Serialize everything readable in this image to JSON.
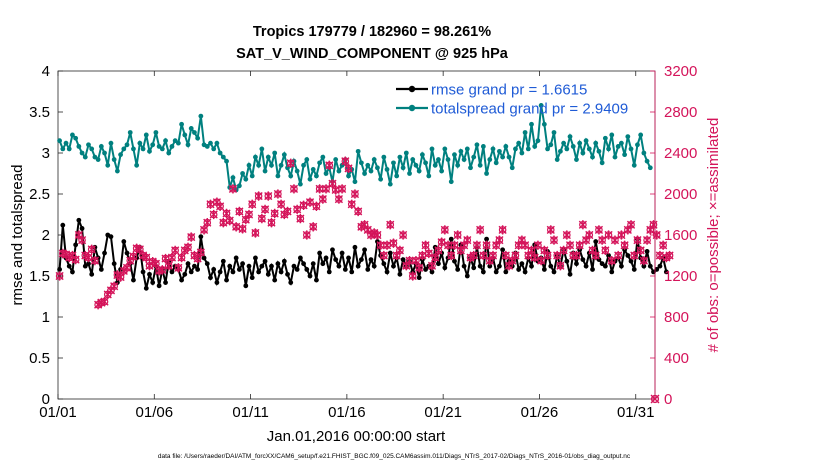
{
  "chart_data": {
    "type": "line",
    "title": "Tropics 179779 / 182960 = 98.261%",
    "subtitle": "SAT_V_WIND_COMPONENT @ 925 hPa",
    "xlabel": "Jan.01,2016 00:00:00 start",
    "ylabel_left": "rmse and totalspread",
    "ylabel_right": "# of obs: o=possible; ×=assimilated",
    "footer": "data file: /Users/raeder/DAI/ATM_forcXX/CAM6_setup/f.e21.FHIST_BGC.f09_025.CAM6assim.011/Diags_NTrS_2017-02/Diags_NTrS_2016-01/obs_diag_output.nc",
    "x_ticks": [
      1,
      6,
      11,
      16,
      21,
      26,
      31
    ],
    "x_tick_labels": [
      "01/01",
      "01/06",
      "01/11",
      "01/16",
      "01/21",
      "01/26",
      "01/31"
    ],
    "xlim": [
      1,
      32
    ],
    "ylim_left": [
      0,
      4
    ],
    "y_left_ticks": [
      0,
      0.5,
      1,
      1.5,
      2,
      2.5,
      3,
      3.5,
      4
    ],
    "y_left_tick_labels": [
      "0",
      "0.5",
      "1",
      "1.5",
      "2",
      "2.5",
      "3",
      "3.5",
      "4"
    ],
    "ylim_right": [
      0,
      3200
    ],
    "y_right_ticks": [
      0,
      400,
      800,
      1200,
      1600,
      2000,
      2400,
      2800,
      3200
    ],
    "y_right_tick_labels": [
      "0",
      "400",
      "800",
      "1200",
      "1600",
      "2000",
      "2400",
      "2800",
      "3200"
    ],
    "legend_position": "top-right",
    "series": [
      {
        "name": "rmse grand pr = 1.6615",
        "color": "#000000",
        "marker": "dot",
        "axis": "left",
        "values": [
          1.58,
          2.12,
          1.72,
          1.62,
          1.55,
          1.88,
          2.18,
          2.08,
          1.62,
          1.65,
          1.52,
          1.85,
          1.72,
          1.58,
          1.78,
          2.0,
          1.98,
          1.65,
          1.42,
          1.58,
          1.92,
          1.78,
          1.65,
          1.45,
          1.72,
          1.85,
          1.55,
          1.35,
          1.52,
          1.42,
          1.62,
          1.38,
          1.58,
          1.42,
          1.68,
          1.55,
          1.62,
          1.58,
          1.45,
          1.52,
          1.65,
          1.55,
          1.62,
          1.58,
          1.98,
          1.72,
          1.65,
          1.48,
          1.58,
          1.42,
          1.55,
          1.68,
          1.45,
          1.62,
          1.55,
          1.72,
          1.58,
          1.65,
          1.38,
          1.62,
          1.48,
          1.72,
          1.55,
          1.62,
          1.68,
          1.52,
          1.62,
          1.45,
          1.65,
          1.55,
          1.68,
          1.52,
          1.42,
          1.62,
          1.58,
          1.72,
          1.65,
          1.58,
          1.5,
          1.65,
          1.45,
          1.78,
          1.65,
          1.72,
          1.55,
          1.82,
          1.7,
          1.62,
          1.78,
          1.58,
          1.72,
          1.55,
          1.85,
          1.62,
          1.7,
          1.82,
          1.58,
          1.7,
          1.62,
          1.92,
          1.75,
          1.65,
          1.55,
          1.78,
          1.62,
          1.72,
          1.52,
          1.7,
          1.62,
          1.68,
          1.55,
          1.65,
          1.48,
          1.7,
          1.58,
          1.62,
          1.55,
          1.85,
          1.65,
          1.78,
          1.6,
          1.72,
          1.95,
          1.68,
          1.58,
          1.88,
          1.62,
          1.5,
          1.72,
          1.6,
          1.85,
          1.62,
          1.55,
          1.95,
          1.62,
          1.72,
          1.55,
          1.62,
          1.82,
          1.55,
          1.68,
          1.62,
          1.78,
          1.58,
          1.65,
          1.55,
          1.72,
          1.62,
          1.88,
          1.68,
          1.72,
          1.58,
          1.8,
          1.62,
          1.55,
          1.75,
          1.62,
          1.82,
          1.68,
          1.52,
          1.78,
          1.65,
          1.82,
          1.7,
          1.62,
          1.78,
          1.58,
          1.92,
          1.7,
          1.65,
          1.62,
          1.75,
          1.55,
          1.68,
          1.72,
          1.62,
          1.82,
          1.75,
          1.68,
          1.58,
          1.95,
          1.72,
          1.62,
          1.8,
          1.62,
          1.55,
          1.58,
          1.62,
          1.72,
          1.55
        ]
      },
      {
        "name": "totalspread grand pr = 2.9409",
        "color": "#00807f",
        "marker": "dot",
        "axis": "left",
        "values": [
          3.15,
          3.05,
          3.12,
          3.05,
          3.22,
          3.18,
          3.08,
          3.0,
          2.95,
          3.1,
          3.05,
          2.95,
          2.92,
          3.08,
          3.0,
          2.85,
          3.12,
          2.92,
          2.78,
          2.98,
          3.05,
          3.1,
          3.25,
          3.05,
          2.85,
          3.12,
          3.05,
          3.22,
          3.02,
          3.1,
          3.25,
          3.08,
          3.05,
          3.15,
          3.0,
          3.08,
          3.15,
          3.12,
          3.35,
          3.22,
          3.1,
          3.3,
          3.25,
          3.18,
          3.45,
          3.1,
          3.08,
          3.12,
          3.05,
          3.12,
          3.0,
          2.95,
          2.9,
          2.58,
          2.7,
          2.55,
          2.6,
          2.75,
          2.68,
          2.85,
          2.72,
          2.95,
          2.85,
          3.05,
          2.78,
          2.95,
          2.85,
          3.0,
          2.72,
          2.85,
          2.98,
          2.82,
          2.72,
          2.9,
          2.78,
          2.62,
          2.85,
          2.92,
          2.68,
          2.8,
          2.72,
          2.88,
          2.95,
          2.75,
          2.82,
          2.65,
          2.92,
          2.78,
          2.85,
          2.92,
          2.72,
          2.8,
          2.65,
          3.02,
          2.88,
          2.75,
          2.85,
          2.78,
          2.92,
          2.82,
          2.68,
          2.95,
          2.8,
          2.62,
          2.88,
          2.72,
          2.95,
          2.82,
          3.0,
          2.75,
          2.92,
          2.85,
          2.78,
          2.98,
          2.88,
          2.72,
          3.05,
          2.85,
          2.92,
          2.78,
          3.05,
          2.92,
          2.65,
          2.98,
          2.85,
          3.02,
          2.92,
          3.05,
          2.82,
          2.95,
          3.1,
          2.85,
          3.08,
          2.75,
          2.92,
          3.05,
          2.88,
          3.02,
          2.95,
          3.08,
          2.95,
          2.82,
          3.05,
          3.12,
          3.0,
          3.25,
          3.05,
          3.35,
          3.08,
          3.15,
          3.58,
          3.35,
          3.05,
          3.1,
          3.25,
          2.92,
          3.02,
          3.12,
          3.05,
          3.2,
          3.08,
          2.92,
          3.12,
          3.0,
          3.15,
          3.05,
          2.95,
          3.12,
          3.02,
          2.88,
          3.18,
          3.05,
          3.22,
          2.95,
          3.08,
          3.12,
          2.98,
          3.2,
          3.05,
          2.85,
          3.1,
          3.22,
          3.0,
          2.9,
          2.82
        ]
      },
      {
        "name": "possible",
        "color": "#d4145a",
        "marker": "o",
        "axis": "right",
        "values": [
          1200,
          1420,
          1410,
          1380,
          1400,
          1360,
          1600,
          1550,
          1400,
          1380,
          1460,
          1350,
          920,
          940,
          950,
          1020,
          1060,
          1100,
          1210,
          1190,
          1250,
          1280,
          1350,
          1390,
          1470,
          1460,
          1400,
          1380,
          1300,
          1340,
          1320,
          1250,
          1260,
          1370,
          1300,
          1380,
          1450,
          1280,
          1380,
          1450,
          1480,
          1580,
          1400,
          1370,
          1430,
          1650,
          1720,
          1900,
          1800,
          1920,
          1880,
          1720,
          1810,
          1740,
          2050,
          1680,
          1830,
          1660,
          1750,
          1800,
          1900,
          1620,
          1980,
          1760,
          1850,
          1980,
          1720,
          1810,
          2000,
          1900,
          1800,
          1830,
          2300,
          2050,
          1850,
          1760,
          1890,
          1600,
          1920,
          1680,
          1880,
          2050,
          1950,
          2050,
          2280,
          2100,
          2040,
          1950,
          2050,
          2320,
          2250,
          1900,
          2000,
          1830,
          1680,
          1700,
          1650,
          1600,
          1620,
          1600,
          1500,
          1400,
          1500,
          1700,
          1520,
          1400,
          1450,
          1600,
          1300,
          1350,
          1200,
          1350,
          1280,
          1400,
          1500,
          1420,
          1300,
          1380,
          1450,
          1530,
          1650,
          1500,
          1400,
          1500,
          1600,
          1450,
          1500,
          1550,
          1380,
          1400,
          1500,
          1650,
          1400,
          1500,
          1350,
          1400,
          1500,
          1550,
          1650,
          1400,
          1300,
          1350,
          1400,
          1500,
          1550,
          1500,
          1400,
          1450,
          1380,
          1500,
          1350,
          1450,
          1400,
          1650,
          1550,
          1400,
          1300,
          1450,
          1600,
          1500,
          1400,
          1400,
          1500,
          1700,
          1550,
          1600,
          1450,
          1400,
          1650,
          1550,
          1450,
          1600,
          1350,
          1550,
          1400,
          1600,
          1500,
          1650,
          1700,
          1400,
          1550,
          1450,
          1350,
          1550,
          1650,
          1700,
          1600,
          1400,
          1500,
          1380,
          1400
        ]
      },
      {
        "name": "assimilated",
        "color": "#d4145a",
        "marker": "x",
        "axis": "right",
        "values": [
          1200,
          1420,
          1410,
          1380,
          1400,
          1360,
          1600,
          1550,
          1400,
          1380,
          1460,
          1350,
          920,
          940,
          950,
          1020,
          1060,
          1100,
          1210,
          1190,
          1250,
          1280,
          1350,
          1390,
          1470,
          1460,
          1400,
          1380,
          1300,
          1340,
          1320,
          1250,
          1260,
          1370,
          1300,
          1380,
          1450,
          1280,
          1380,
          1450,
          1480,
          1580,
          1400,
          1370,
          1430,
          1650,
          1720,
          1900,
          1800,
          1920,
          1880,
          1720,
          1810,
          1740,
          2050,
          1680,
          1830,
          1660,
          1750,
          1800,
          1900,
          1620,
          1980,
          1760,
          1850,
          1980,
          1720,
          1810,
          2000,
          1900,
          1800,
          1830,
          2300,
          2050,
          1850,
          1760,
          1890,
          1600,
          1920,
          1680,
          1880,
          2050,
          1950,
          2050,
          2280,
          2100,
          2040,
          1950,
          2050,
          2320,
          2250,
          1900,
          2000,
          1830,
          1680,
          1700,
          1650,
          1600,
          1620,
          1600,
          1500,
          1400,
          1500,
          1700,
          1520,
          1400,
          1450,
          1600,
          1300,
          1350,
          1200,
          1350,
          1280,
          1400,
          1500,
          1420,
          1300,
          1380,
          1450,
          1530,
          1650,
          1500,
          1400,
          1500,
          1600,
          1450,
          1500,
          1550,
          1380,
          1400,
          1500,
          1650,
          1400,
          1500,
          1350,
          1400,
          1500,
          1550,
          1650,
          1400,
          1300,
          1350,
          1400,
          1500,
          1550,
          1500,
          1400,
          1450,
          1380,
          1500,
          1350,
          1450,
          1400,
          1650,
          1550,
          1400,
          1300,
          1450,
          1600,
          1500,
          1400,
          1400,
          1500,
          1700,
          1550,
          1600,
          1450,
          1400,
          1650,
          1550,
          1450,
          1600,
          1350,
          1550,
          1400,
          1600,
          1500,
          1650,
          1700,
          1400,
          1550,
          1450,
          1350,
          1550,
          1650,
          1700,
          1600,
          1400,
          1500,
          1380,
          1400
        ]
      }
    ],
    "end_marker": {
      "x": 32,
      "value": 0,
      "color": "#d4145a"
    }
  }
}
